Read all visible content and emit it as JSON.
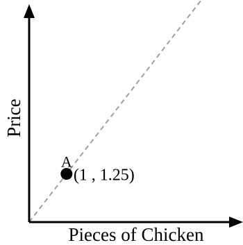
{
  "chart_data": {
    "type": "line",
    "title": "",
    "xlabel": "Pieces of Chicken",
    "ylabel": "Price",
    "xlim": [
      0,
      5.5
    ],
    "ylim": [
      0,
      5.4
    ],
    "grid": false,
    "tick_labels": false,
    "series": [
      {
        "style": "dashed",
        "color": "#a0a0a0",
        "x": [
          0,
          5
        ],
        "y": [
          0,
          6.25
        ]
      }
    ],
    "points": [
      {
        "label": "A",
        "x": 1,
        "y": 1.25,
        "annotation": "(1 , 1.25)"
      }
    ]
  }
}
